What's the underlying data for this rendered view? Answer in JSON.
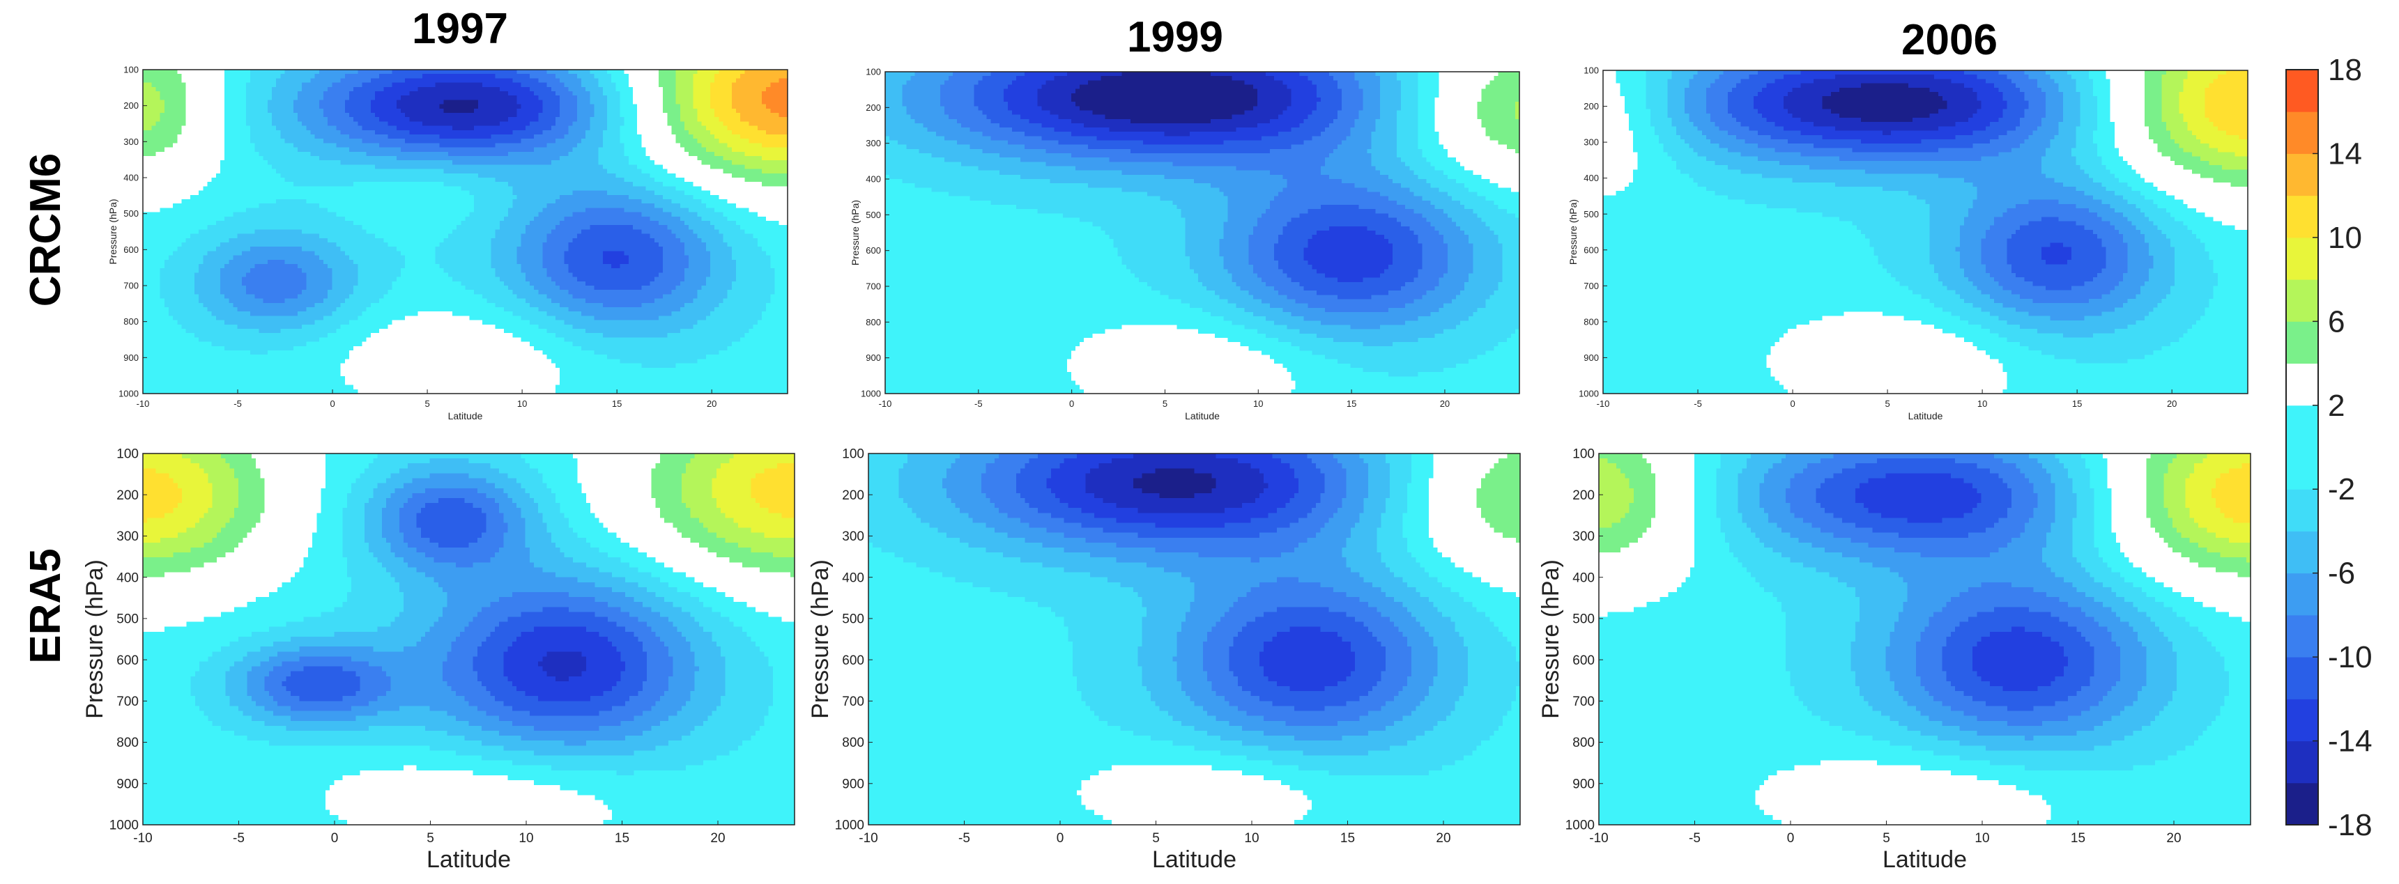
{
  "figure": {
    "column_titles": [
      "1997",
      "1999",
      "2006"
    ],
    "row_labels": [
      "CRCM6",
      "ERA5"
    ]
  },
  "colorbar": {
    "tick_labels": [
      "18",
      "14",
      "10",
      "6",
      "2",
      "-2",
      "-6",
      "-10",
      "-14",
      "-18"
    ],
    "levels": [
      -18,
      -16,
      -14,
      -12,
      -10,
      -8,
      -6,
      -4,
      -2,
      2,
      4,
      6,
      8,
      10,
      12,
      14,
      16,
      18
    ],
    "colors": [
      "#1b1f8a",
      "#1e2fc0",
      "#2240e0",
      "#2a5fe8",
      "#3a7ff0",
      "#3d9df2",
      "#3fbef5",
      "#40dcf8",
      "#3ff3fa",
      "#ffffff",
      "#7af08a",
      "#b4f55a",
      "#e8f53a",
      "#ffe030",
      "#ffb830",
      "#ff8a28",
      "#ff5a22",
      "#f22a1e"
    ]
  },
  "chart_data": {
    "type": "contour",
    "variable_units": "",
    "x": {
      "label": "Latitude",
      "range": [
        -10,
        24
      ],
      "ticks": [
        "-10",
        "-5",
        "0",
        "5",
        "10",
        "15",
        "20"
      ]
    },
    "y": {
      "label": "Pressure (hPa)",
      "range": [
        1000,
        100
      ],
      "ticks": [
        "100",
        "200",
        "300",
        "400",
        "500",
        "600",
        "700",
        "800",
        "900",
        "1000"
      ]
    },
    "panels": [
      {
        "row": "CRCM6",
        "year": "1997",
        "features": [
          {
            "kind": "max",
            "lat": 24,
            "p": 180,
            "value": 16,
            "sx": 6,
            "sy": 170
          },
          {
            "kind": "max",
            "lat": -10,
            "p": 200,
            "value": 8,
            "sx": 3,
            "sy": 150
          },
          {
            "kind": "min",
            "lat": 7,
            "p": 200,
            "value": -15,
            "sx": 6,
            "sy": 110
          },
          {
            "kind": "min",
            "lat": 15,
            "p": 620,
            "value": -11,
            "sx": 4,
            "sy": 150
          },
          {
            "kind": "min",
            "lat": -3,
            "p": 690,
            "value": -8,
            "sx": 3,
            "sy": 100
          },
          {
            "kind": "max",
            "lat": 7,
            "p": 900,
            "value": 4,
            "sx": 5,
            "sy": 110
          },
          {
            "kind": "max",
            "lat": 5,
            "p": 440,
            "value": 2,
            "sx": 3,
            "sy": 70
          }
        ]
      },
      {
        "row": "CRCM6",
        "year": "1999",
        "features": [
          {
            "kind": "max",
            "lat": 24,
            "p": 200,
            "value": 9,
            "sx": 5,
            "sy": 150
          },
          {
            "kind": "min",
            "lat": 5,
            "p": 170,
            "value": -17,
            "sx": 9,
            "sy": 130
          },
          {
            "kind": "min",
            "lat": 15,
            "p": 610,
            "value": -12,
            "sx": 5,
            "sy": 160
          },
          {
            "kind": "max",
            "lat": 7,
            "p": 920,
            "value": 4,
            "sx": 5,
            "sy": 110
          }
        ]
      },
      {
        "row": "CRCM6",
        "year": "2006",
        "features": [
          {
            "kind": "max",
            "lat": 24,
            "p": 190,
            "value": 14,
            "sx": 6,
            "sy": 170
          },
          {
            "kind": "max",
            "lat": -10,
            "p": 220,
            "value": 5,
            "sx": 3,
            "sy": 140
          },
          {
            "kind": "min",
            "lat": 5,
            "p": 190,
            "value": -16,
            "sx": 8,
            "sy": 120
          },
          {
            "kind": "min",
            "lat": 14,
            "p": 610,
            "value": -11,
            "sx": 4,
            "sy": 150
          },
          {
            "kind": "max",
            "lat": 6,
            "p": 910,
            "value": 4,
            "sx": 5,
            "sy": 110
          }
        ]
      },
      {
        "row": "ERA5",
        "year": "1997",
        "features": [
          {
            "kind": "max",
            "lat": 24,
            "p": 190,
            "value": 12,
            "sx": 6,
            "sy": 160
          },
          {
            "kind": "max",
            "lat": -10,
            "p": 200,
            "value": 12,
            "sx": 5,
            "sy": 150
          },
          {
            "kind": "min",
            "lat": 6,
            "p": 260,
            "value": -10,
            "sx": 3,
            "sy": 90
          },
          {
            "kind": "min",
            "lat": 12,
            "p": 610,
            "value": -13,
            "sx": 5,
            "sy": 150
          },
          {
            "kind": "min",
            "lat": -1,
            "p": 660,
            "value": -10,
            "sx": 3,
            "sy": 70
          },
          {
            "kind": "max",
            "lat": 8,
            "p": 930,
            "value": 4,
            "sx": 6,
            "sy": 90
          }
        ]
      },
      {
        "row": "ERA5",
        "year": "1999",
        "features": [
          {
            "kind": "max",
            "lat": 24,
            "p": 200,
            "value": 8,
            "sx": 5,
            "sy": 140
          },
          {
            "kind": "min",
            "lat": 6,
            "p": 170,
            "value": -15,
            "sx": 8,
            "sy": 120
          },
          {
            "kind": "min",
            "lat": 13,
            "p": 600,
            "value": -12,
            "sx": 5,
            "sy": 150
          },
          {
            "kind": "max",
            "lat": 8,
            "p": 920,
            "value": 4,
            "sx": 5,
            "sy": 80
          }
        ]
      },
      {
        "row": "ERA5",
        "year": "2006",
        "features": [
          {
            "kind": "max",
            "lat": 24,
            "p": 200,
            "value": 13,
            "sx": 6,
            "sy": 150
          },
          {
            "kind": "max",
            "lat": -10,
            "p": 200,
            "value": 9,
            "sx": 4,
            "sy": 140
          },
          {
            "kind": "min",
            "lat": 7,
            "p": 200,
            "value": -12,
            "sx": 7,
            "sy": 110
          },
          {
            "kind": "min",
            "lat": 12,
            "p": 600,
            "value": -12,
            "sx": 5,
            "sy": 150
          },
          {
            "kind": "max",
            "lat": 7,
            "p": 930,
            "value": 4,
            "sx": 6,
            "sy": 90
          }
        ]
      }
    ]
  }
}
